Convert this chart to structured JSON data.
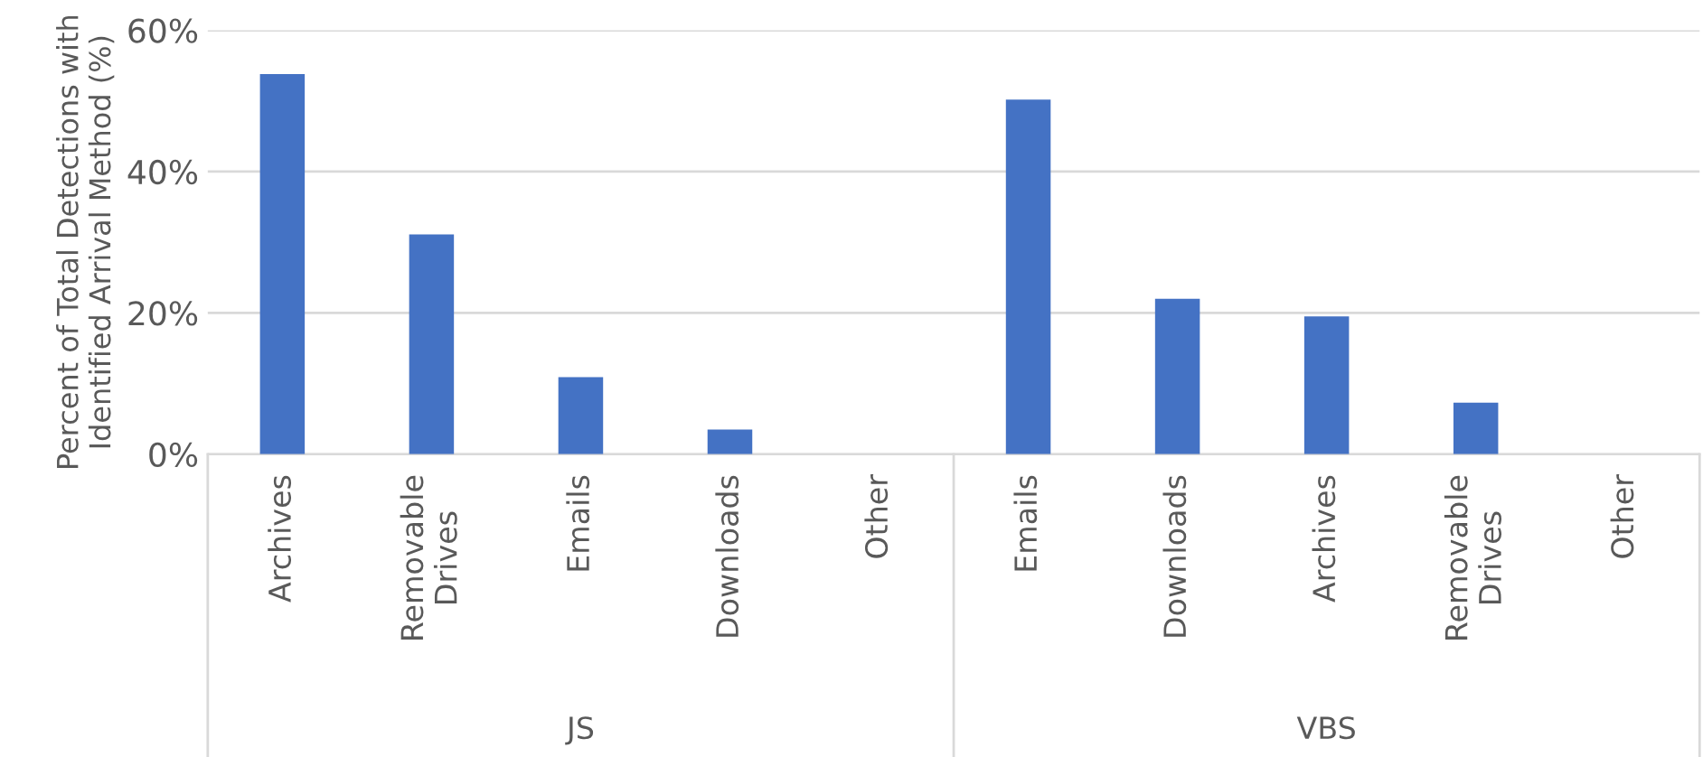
{
  "chart_data": {
    "type": "bar",
    "ylabel": "Percent of Total Detections with\nIdentified Arrival Method (%)",
    "categories": [
      "Archives",
      "Removable\nDrives",
      "Emails",
      "Downloads",
      "Other",
      "Emails",
      "Downloads",
      "Archives",
      "Removable\nDrives",
      "Other"
    ],
    "values": [
      53.8,
      31.1,
      10.9,
      3.5,
      null,
      50.2,
      22.0,
      19.5,
      7.3,
      null
    ],
    "color": "#4472c4",
    "ylim": [
      0,
      60
    ],
    "yticks": [
      {
        "value": 0,
        "label": "0%"
      },
      {
        "value": 20,
        "label": "20%"
      },
      {
        "value": 40,
        "label": "40%"
      },
      {
        "value": 60,
        "label": "60%"
      }
    ],
    "grid": "y",
    "annotations": [
      "JS",
      "VBS"
    ]
  }
}
